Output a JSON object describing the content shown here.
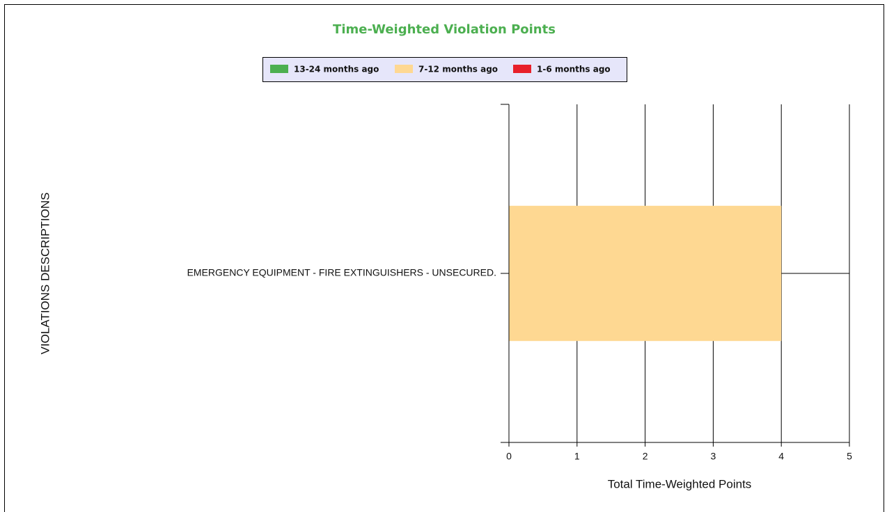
{
  "chart_data": {
    "type": "bar",
    "orientation": "horizontal",
    "stacked": true,
    "title": "Time-Weighted Violation Points",
    "categories": [
      "EMERGENCY EQUIPMENT - FIRE EXTINGUISHERS - UNSECURED."
    ],
    "series": [
      {
        "name": "13-24 months ago",
        "color": "#4caf50",
        "values": [
          0
        ]
      },
      {
        "name": "7-12 months ago",
        "color": "#fed892",
        "values": [
          4
        ]
      },
      {
        "name": "1-6 months ago",
        "color": "#e8202a",
        "values": [
          0
        ]
      }
    ],
    "xlim": [
      0,
      5
    ],
    "xticks": [
      0,
      1,
      2,
      3,
      4,
      5
    ],
    "grid": true,
    "x_label": "Total Time-Weighted Points",
    "y_label": "VIOLATIONS DESCRIPTIONS",
    "legend": "top"
  }
}
